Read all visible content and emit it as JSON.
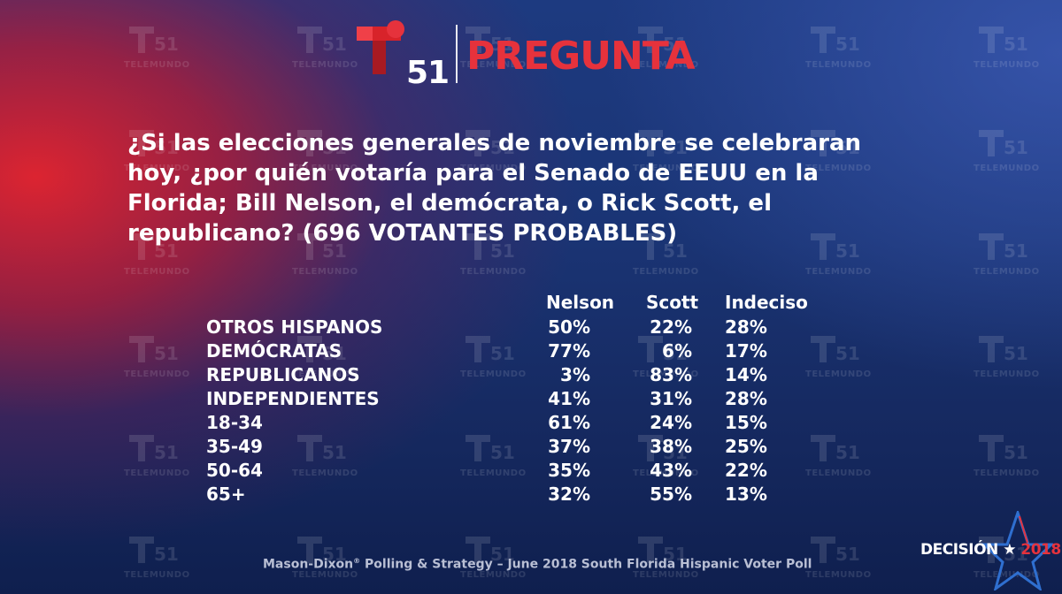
{
  "header": {
    "logo_number": "51",
    "title": "PREGUNTA",
    "brand_color": "#e6323c"
  },
  "question": "¿Si las elecciones generales de noviembre se celebraran hoy, ¿por quién votaría para el Senado de EEUU en la Florida; Bill Nelson, el demócrata, o Rick Scott, el republicano? (696 VOTANTES PROBABLES)",
  "table": {
    "columns": [
      "Nelson",
      "Scott",
      "Indeciso"
    ],
    "rows": [
      {
        "label": "OTROS HISPANOS",
        "nelson": "50%",
        "scott": "22%",
        "indeciso": "28%"
      },
      {
        "label": "DEMÓCRATAS",
        "nelson": "77%",
        "scott": "6%",
        "indeciso": "17%"
      },
      {
        "label": "REPUBLICANOS",
        "nelson": "3%",
        "scott": "83%",
        "indeciso": "14%"
      },
      {
        "label": "INDEPENDIENTES",
        "nelson": "41%",
        "scott": "31%",
        "indeciso": "28%"
      },
      {
        "label": "18-34",
        "nelson": "61%",
        "scott": "24%",
        "indeciso": "15%"
      },
      {
        "label": "35-49",
        "nelson": "37%",
        "scott": "38%",
        "indeciso": "25%"
      },
      {
        "label": "50-64",
        "nelson": "35%",
        "scott": "43%",
        "indeciso": "22%"
      },
      {
        "label": "65+",
        "nelson": "32%",
        "scott": "55%",
        "indeciso": "13%"
      }
    ]
  },
  "footer": {
    "source_pre": "Mason-Dixon",
    "source_mark": "®",
    "source_post": " Polling & Strategy – June 2018 South Florida Hispanic Voter Poll"
  },
  "badge": {
    "word": "DECISIÓN",
    "star": "★",
    "year": "2018"
  },
  "watermark": {
    "number": "51",
    "label": "TELEMUNDO"
  }
}
